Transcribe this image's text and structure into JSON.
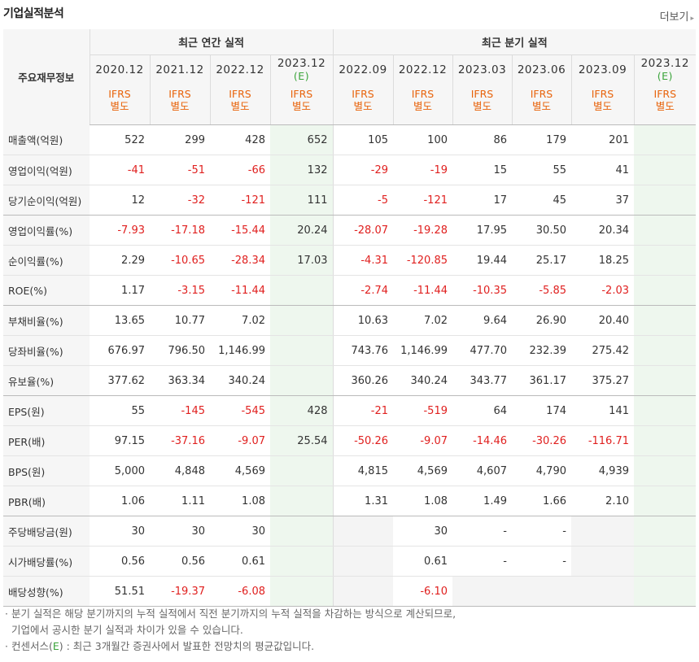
{
  "header": {
    "title": "기업실적분석",
    "more_label": "더보기",
    "more_arrow": "▸"
  },
  "table": {
    "label_header": "주요재무정보",
    "annual_group": "최근 연간 실적",
    "quarter_group": "최근 분기 실적",
    "periods": [
      {
        "date": "2020.12",
        "est": "",
        "ifrs": [
          "IFRS",
          "별도"
        ]
      },
      {
        "date": "2021.12",
        "est": "",
        "ifrs": [
          "IFRS",
          "별도"
        ]
      },
      {
        "date": "2022.12",
        "est": "",
        "ifrs": [
          "IFRS",
          "별도"
        ]
      },
      {
        "date": "2023.12",
        "est": "(E)",
        "ifrs": [
          "IFRS",
          "별도"
        ]
      },
      {
        "date": "2022.09",
        "est": "",
        "ifrs": [
          "IFRS",
          "별도"
        ]
      },
      {
        "date": "2022.12",
        "est": "",
        "ifrs": [
          "IFRS",
          "별도"
        ]
      },
      {
        "date": "2023.03",
        "est": "",
        "ifrs": [
          "IFRS",
          "별도"
        ]
      },
      {
        "date": "2023.06",
        "est": "",
        "ifrs": [
          "IFRS",
          "별도"
        ]
      },
      {
        "date": "2023.09",
        "est": "",
        "ifrs": [
          "IFRS",
          "별도"
        ]
      },
      {
        "date": "2023.12",
        "est": "(E)",
        "ifrs": [
          "IFRS",
          "별도"
        ]
      }
    ],
    "rows": [
      {
        "label": "매출액(억원)",
        "values": [
          "522",
          "299",
          "428",
          "652",
          "105",
          "100",
          "86",
          "179",
          "201",
          ""
        ]
      },
      {
        "label": "영업이익(억원)",
        "values": [
          "-41",
          "-51",
          "-66",
          "132",
          "-29",
          "-19",
          "15",
          "55",
          "41",
          ""
        ]
      },
      {
        "label": "당기순이익(억원)",
        "values": [
          "12",
          "-32",
          "-121",
          "111",
          "-5",
          "-121",
          "17",
          "45",
          "37",
          ""
        ]
      },
      {
        "label": "영업이익률(%)",
        "values": [
          "-7.93",
          "-17.18",
          "-15.44",
          "20.24",
          "-28.07",
          "-19.28",
          "17.95",
          "30.50",
          "20.34",
          ""
        ]
      },
      {
        "label": "순이익률(%)",
        "values": [
          "2.29",
          "-10.65",
          "-28.34",
          "17.03",
          "-4.31",
          "-120.85",
          "19.44",
          "25.17",
          "18.25",
          ""
        ]
      },
      {
        "label": "ROE(%)",
        "values": [
          "1.17",
          "-3.15",
          "-11.44",
          "",
          "-2.74",
          "-11.44",
          "-10.35",
          "-5.85",
          "-2.03",
          ""
        ]
      },
      {
        "label": "부채비율(%)",
        "values": [
          "13.65",
          "10.77",
          "7.02",
          "",
          "10.63",
          "7.02",
          "9.64",
          "26.90",
          "20.40",
          ""
        ]
      },
      {
        "label": "당좌비율(%)",
        "values": [
          "676.97",
          "796.50",
          "1,146.99",
          "",
          "743.76",
          "1,146.99",
          "477.70",
          "232.39",
          "275.42",
          ""
        ]
      },
      {
        "label": "유보율(%)",
        "values": [
          "377.62",
          "363.34",
          "340.24",
          "",
          "360.26",
          "340.24",
          "343.77",
          "361.17",
          "375.27",
          ""
        ]
      },
      {
        "label": "EPS(원)",
        "values": [
          "55",
          "-145",
          "-545",
          "428",
          "-21",
          "-519",
          "64",
          "174",
          "141",
          ""
        ]
      },
      {
        "label": "PER(배)",
        "values": [
          "97.15",
          "-37.16",
          "-9.07",
          "25.54",
          "-50.26",
          "-9.07",
          "-14.46",
          "-30.26",
          "-116.71",
          ""
        ]
      },
      {
        "label": "BPS(원)",
        "values": [
          "5,000",
          "4,848",
          "4,569",
          "",
          "4,815",
          "4,569",
          "4,607",
          "4,790",
          "4,939",
          ""
        ]
      },
      {
        "label": "PBR(배)",
        "values": [
          "1.06",
          "1.11",
          "1.08",
          "",
          "1.31",
          "1.08",
          "1.49",
          "1.66",
          "2.10",
          ""
        ]
      },
      {
        "label": "주당배당금(원)",
        "values": [
          "30",
          "30",
          "30",
          "",
          "",
          "30",
          "-",
          "-",
          "",
          ""
        ]
      },
      {
        "label": "시가배당률(%)",
        "values": [
          "0.56",
          "0.56",
          "0.61",
          "",
          "",
          "0.61",
          "-",
          "-",
          "",
          ""
        ]
      },
      {
        "label": "배당성향(%)",
        "values": [
          "51.51",
          "-19.37",
          "-6.08",
          "",
          "",
          "-6.10",
          "",
          "",
          "",
          ""
        ]
      }
    ]
  },
  "notes": {
    "line1": "분기 실적은 해당 분기까지의 누적 실적에서 직전 분기까지의 누적 실적을 차감하는 방식으로 계산되므로,",
    "line2": "기업에서 공시한 분기 실적과 차이가 있을 수 있습니다.",
    "line3_prefix": "컨센서스(",
    "line3_est": "E",
    "line3_suffix": ") : 최근 3개월간 증권사에서 발표한 전망치의 평균값입니다."
  },
  "colors": {
    "negative": "#e0201f",
    "ifrs": "#e8630b",
    "estimate": "#3aa43a",
    "estimate_bg": "#eef7ee",
    "header_bg": "#f6f6f6"
  }
}
